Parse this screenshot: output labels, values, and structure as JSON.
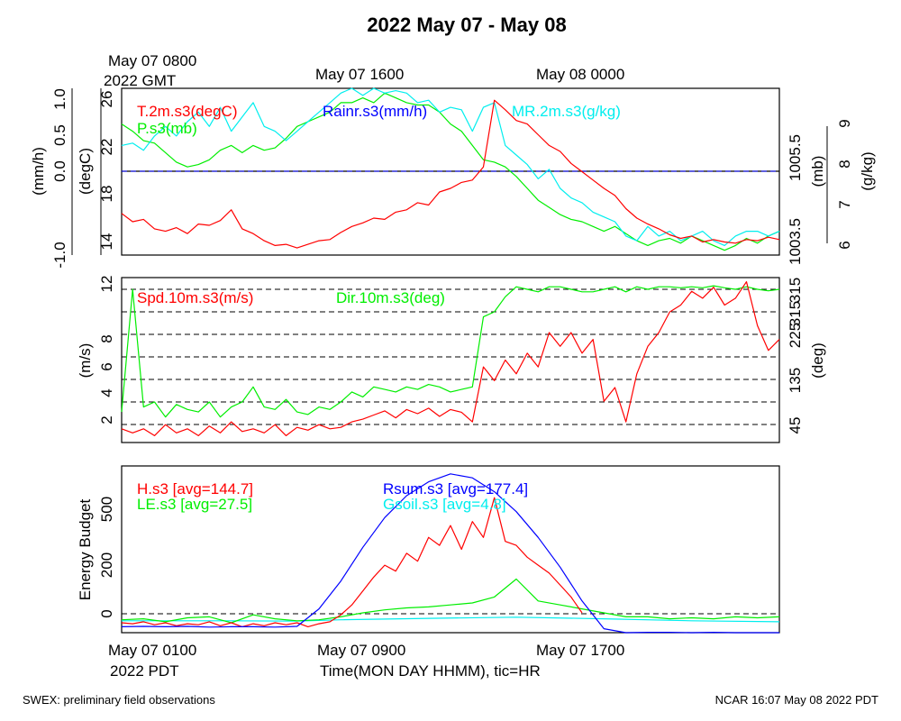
{
  "title": "2022 May 07 - May 08",
  "footer": {
    "left": "SWEX: preliminary field observations",
    "right": "NCAR 16:07 May 08 2022 PDT"
  },
  "colors": {
    "red": "#ff0000",
    "green": "#00ee00",
    "blue": "#0000ff",
    "cyan": "#00eeee",
    "black": "#000000"
  },
  "chart_data": [
    {
      "type": "line",
      "panel": "top",
      "top_time_labels": [
        {
          "label_line1": "May 07 0800",
          "label_line2": "2022 GMT"
        },
        {
          "label_line1": "May 07 1600",
          "label_line2": ""
        },
        {
          "label_line1": "May 08 0000",
          "label_line2": ""
        }
      ],
      "axes": {
        "rain": {
          "label": "(mm/h)",
          "ticks": [
            "1.0",
            "0.5",
            "0.0",
            "-1.0"
          ],
          "ylim": [
            -1.0,
            1.0
          ]
        },
        "temp": {
          "label": "(degC)",
          "ticks": [
            "26",
            "22",
            "18",
            "14"
          ],
          "ylim": [
            13,
            27
          ]
        },
        "pres": {
          "label": "(mb)",
          "ticks": [
            "1005.5",
            "1003.5"
          ]
        },
        "mr": {
          "label": "(g/kg)",
          "ticks": [
            "9",
            "8",
            "7",
            "6"
          ],
          "ylim": [
            5.8,
            9.3
          ]
        }
      },
      "series": [
        {
          "name": "T.2m.s3(degC)",
          "color": "#ff0000",
          "axis": "temp",
          "x": [
            0,
            0.5,
            1,
            1.5,
            2,
            2.5,
            3,
            3.5,
            4,
            4.5,
            5,
            5.5,
            6,
            6.5,
            7,
            7.5,
            8,
            8.5,
            9,
            9.5,
            10,
            10.5,
            11,
            11.5,
            12,
            12.5,
            13,
            13.5,
            14,
            14.5,
            15,
            15.5,
            16,
            16.5,
            17,
            17.5,
            18,
            18.5,
            19,
            19.5,
            20,
            20.5,
            21,
            21.5,
            22,
            22.5,
            23,
            23.5,
            24,
            24.5,
            25,
            25.5,
            26,
            26.5,
            27,
            27.5,
            28,
            28.5,
            29,
            29.5,
            30
          ],
          "values": [
            16.5,
            15.8,
            16.0,
            15.2,
            15.0,
            15.3,
            14.8,
            15.6,
            15.5,
            15.9,
            16.8,
            15.2,
            14.8,
            14.2,
            13.8,
            13.9,
            13.6,
            13.9,
            14.2,
            14.3,
            14.9,
            15.4,
            15.7,
            16.1,
            16.0,
            16.6,
            16.8,
            17.4,
            17.2,
            18.3,
            18.6,
            19.1,
            19.3,
            20.4,
            26.0,
            25.2,
            24.3,
            24.0,
            23.1,
            22.2,
            21.7,
            20.7,
            20.0,
            19.3,
            18.6,
            18.0,
            16.9,
            16.1,
            15.6,
            15.2,
            14.7,
            14.4,
            14.6,
            14.1,
            14.3,
            14.1,
            14.0,
            14.3,
            14.2,
            14.5,
            14.3
          ]
        },
        {
          "name": "Rainr.s3(mm/h)",
          "color": "#0000ff",
          "axis": "rain",
          "x": [
            0,
            30
          ],
          "values": [
            0,
            0
          ]
        },
        {
          "name": "MR.2m.s3(g/kg)",
          "color": "#00eeee",
          "axis": "mr",
          "x": [
            0,
            0.5,
            1,
            1.5,
            2,
            2.5,
            3,
            3.5,
            4,
            4.5,
            5,
            5.5,
            6,
            6.5,
            7,
            7.5,
            8,
            8.5,
            9,
            9.5,
            10,
            10.5,
            11,
            11.5,
            12,
            12.5,
            13,
            13.5,
            14,
            14.5,
            15,
            15.5,
            16,
            16.5,
            17,
            17.5,
            18,
            18.5,
            19,
            19.5,
            20,
            20.5,
            21,
            21.5,
            22,
            22.5,
            23,
            23.5,
            24,
            24.5,
            25,
            25.5,
            26,
            26.5,
            27,
            27.5,
            28,
            28.5,
            29,
            29.5,
            30
          ],
          "values": [
            8.1,
            8.15,
            8.0,
            8.3,
            8.5,
            8.3,
            8.6,
            8.8,
            8.5,
            8.9,
            8.4,
            8.7,
            9.0,
            8.5,
            8.4,
            8.2,
            8.4,
            8.6,
            8.8,
            9.0,
            9.2,
            9.3,
            9.15,
            9.3,
            9.2,
            9.25,
            9.2,
            9.0,
            9.05,
            8.8,
            8.9,
            8.85,
            8.4,
            8.9,
            9.0,
            8.1,
            7.9,
            7.7,
            7.4,
            7.6,
            7.2,
            7.0,
            6.9,
            6.7,
            6.6,
            6.5,
            6.2,
            6.1,
            6.4,
            6.2,
            6.3,
            6.1,
            6.2,
            6.3,
            6.1,
            6.0,
            6.2,
            6.3,
            6.3,
            6.2,
            6.3
          ]
        },
        {
          "name": "P.s3(mb)",
          "color": "#00ee00",
          "axis": "mr",
          "x": [
            0,
            0.5,
            1,
            1.5,
            2,
            2.5,
            3,
            3.5,
            4,
            4.5,
            5,
            5.5,
            6,
            6.5,
            7,
            7.5,
            8,
            8.5,
            9,
            9.5,
            10,
            10.5,
            11,
            11.5,
            12,
            12.5,
            13,
            13.5,
            14,
            14.5,
            15,
            15.5,
            16,
            16.5,
            17,
            17.5,
            18,
            18.5,
            19,
            19.5,
            20,
            20.5,
            21,
            21.5,
            22,
            22.5,
            23,
            23.5,
            24,
            24.5,
            25,
            25.5,
            26,
            26.5,
            27,
            27.5,
            28,
            28.5,
            29,
            29.5,
            30
          ],
          "values": [
            8.55,
            8.4,
            8.2,
            8.15,
            7.95,
            7.75,
            7.65,
            7.7,
            7.8,
            8.0,
            8.1,
            7.95,
            8.1,
            8.0,
            8.05,
            8.25,
            8.5,
            8.6,
            8.7,
            8.8,
            9.0,
            9.0,
            9.1,
            9.0,
            9.2,
            9.1,
            9.0,
            8.95,
            8.95,
            8.8,
            8.55,
            8.4,
            8.1,
            7.8,
            7.75,
            7.65,
            7.45,
            7.2,
            6.95,
            6.8,
            6.65,
            6.55,
            6.5,
            6.4,
            6.3,
            6.4,
            6.25,
            6.1,
            6.0,
            6.1,
            6.15,
            6.05,
            6.2,
            6.1,
            6.0,
            5.9,
            6.0,
            6.15,
            6.05,
            6.2,
            6.3
          ]
        }
      ]
    },
    {
      "type": "line",
      "panel": "middle",
      "axes": {
        "speed": {
          "label": "(m/s)",
          "ticks": [
            "12",
            "8",
            "6",
            "4",
            "2"
          ],
          "ylim": [
            0.5,
            12.5
          ]
        },
        "dir": {
          "label": "(deg)",
          "ticks": [
            "315",
            "225",
            "135",
            "45"
          ],
          "ylim": [
            45,
            315
          ]
        }
      },
      "series": [
        {
          "name": "Spd.10m.s3(m/s)",
          "color": "#ff0000",
          "axis": "speed",
          "x": [
            0,
            0.5,
            1,
            1.5,
            2,
            2.5,
            3,
            3.5,
            4,
            4.5,
            5,
            5.5,
            6,
            6.5,
            7,
            7.5,
            8,
            8.5,
            9,
            9.5,
            10,
            10.5,
            11,
            11.5,
            12,
            12.5,
            13,
            13.5,
            14,
            14.5,
            15,
            15.5,
            16,
            16.5,
            17,
            17.5,
            18,
            18.5,
            19,
            19.5,
            20,
            20.5,
            21,
            21.5,
            22,
            22.5,
            23,
            23.5,
            24,
            24.5,
            25,
            25.5,
            26,
            26.5,
            27,
            27.5,
            28,
            28.5,
            29,
            29.5,
            30
          ],
          "values": [
            1.5,
            1.2,
            1.5,
            1.0,
            1.8,
            1.2,
            1.5,
            1.0,
            1.7,
            1.2,
            2.0,
            1.3,
            1.5,
            1.2,
            1.8,
            1.0,
            1.6,
            1.4,
            1.8,
            1.5,
            1.6,
            2.0,
            2.2,
            2.5,
            2.8,
            2.3,
            2.9,
            2.6,
            3.0,
            2.4,
            2.9,
            2.7,
            2.0,
            6.0,
            5.0,
            6.5,
            5.5,
            7.0,
            6.0,
            8.5,
            7.5,
            8.5,
            7.0,
            8.0,
            3.5,
            4.5,
            2.0,
            5.5,
            7.5,
            8.5,
            10.0,
            10.5,
            11.5,
            11.0,
            11.8,
            10.5,
            11.0,
            12.2,
            9.0,
            7.2,
            8.0
          ]
        },
        {
          "name": "Dir.10m.s3(deg)",
          "color": "#00ee00",
          "axis": "dir",
          "x": [
            0,
            0.5,
            1,
            1.5,
            2,
            2.5,
            3,
            3.5,
            4,
            4.5,
            5,
            5.5,
            6,
            6.5,
            7,
            7.5,
            8,
            8.5,
            9,
            9.5,
            10,
            10.5,
            11,
            11.5,
            12,
            12.5,
            13,
            13.5,
            14,
            14.5,
            15,
            15.5,
            16,
            16.5,
            17,
            17.5,
            18,
            18.5,
            19,
            19.5,
            20,
            20.5,
            21,
            21.5,
            22,
            22.5,
            23,
            23.5,
            24,
            24.5,
            25,
            25.5,
            26,
            26.5,
            27,
            27.5,
            28,
            28.5,
            29,
            29.5,
            30
          ],
          "values": [
            70,
            315,
            80,
            90,
            60,
            85,
            75,
            70,
            90,
            60,
            80,
            90,
            120,
            80,
            75,
            95,
            70,
            65,
            80,
            75,
            90,
            110,
            100,
            120,
            115,
            110,
            120,
            115,
            125,
            120,
            110,
            115,
            120,
            260,
            270,
            300,
            320,
            315,
            310,
            320,
            320,
            315,
            310,
            310,
            315,
            320,
            310,
            320,
            315,
            320,
            320,
            318,
            320,
            318,
            322,
            318,
            315,
            320,
            315,
            312,
            315
          ]
        }
      ]
    },
    {
      "type": "line",
      "panel": "bottom",
      "axes": {
        "energy": {
          "label": "Energy Budget",
          "ticks": [
            "500",
            "200",
            "0"
          ],
          "ylim": [
            -60,
            780
          ]
        }
      },
      "x_labels": [
        {
          "label_line1": "May 07 0100",
          "label_line2": "2022 PDT"
        },
        {
          "label_line1": "May 07 0900",
          "label_line2": ""
        },
        {
          "label_line1": "May 07 1700",
          "label_line2": ""
        }
      ],
      "xlabel": "Time(MON DAY HHMM), tic=HR",
      "series": [
        {
          "name": "H.s3 [avg=144.7]",
          "color": "#ff0000",
          "x": [
            0,
            0.5,
            1,
            1.5,
            2,
            2.5,
            3,
            3.5,
            4,
            4.5,
            5,
            5.5,
            6,
            6.5,
            7,
            7.5,
            8,
            8.5,
            9,
            9.5,
            10,
            10.5,
            11,
            11.5,
            12,
            12.5,
            13,
            13.5,
            14,
            14.5,
            15,
            15.5,
            16,
            16.5,
            17,
            17.5,
            18,
            18.5,
            19,
            19.5,
            20,
            20.5,
            21
          ],
          "values": [
            -10,
            -15,
            -5,
            -20,
            -10,
            -25,
            -15,
            -20,
            -5,
            -25,
            -10,
            -30,
            -15,
            -25,
            -10,
            -20,
            -10,
            -30,
            -15,
            -5,
            30,
            80,
            150,
            220,
            280,
            250,
            340,
            300,
            420,
            380,
            480,
            360,
            500,
            420,
            620,
            400,
            380,
            320,
            280,
            240,
            180,
            120,
            40
          ]
        },
        {
          "name": "Rsum.s3 [avg=177.4]",
          "color": "#0000ff",
          "x": [
            0,
            1,
            2,
            3,
            4,
            5,
            6,
            7,
            8,
            9,
            10,
            11,
            12,
            13,
            14,
            15,
            16,
            17,
            18,
            19,
            20,
            21,
            22,
            23,
            24,
            25,
            26,
            27,
            28,
            29,
            30
          ],
          "values": [
            -30,
            -28,
            -30,
            -28,
            -32,
            -30,
            -30,
            -32,
            -28,
            60,
            200,
            370,
            520,
            630,
            700,
            740,
            720,
            650,
            550,
            420,
            270,
            100,
            -40,
            -60,
            -58,
            -58,
            -60,
            -58,
            -60,
            -60,
            -60
          ]
        },
        {
          "name": "LE.s3 [avg=27.5]",
          "color": "#00ee00",
          "x": [
            0,
            1,
            2,
            3,
            4,
            5,
            6,
            7,
            8,
            9,
            10,
            11,
            12,
            13,
            14,
            15,
            16,
            17,
            18,
            19,
            20,
            21,
            22,
            23,
            24,
            25,
            26,
            27,
            28,
            29,
            30
          ],
          "values": [
            5,
            10,
            -5,
            15,
            20,
            -10,
            30,
            10,
            0,
            5,
            20,
            40,
            55,
            65,
            70,
            80,
            90,
            120,
            210,
            100,
            80,
            60,
            40,
            20,
            20,
            10,
            15,
            10,
            20,
            15,
            20
          ]
        },
        {
          "name": "Gsoil.s3 [avg=4.8]",
          "color": "#00eeee",
          "x": [
            0,
            5,
            8,
            10,
            14,
            18,
            22,
            26,
            30
          ],
          "values": [
            0,
            0,
            -2,
            5,
            12,
            18,
            10,
            0,
            -5
          ]
        }
      ]
    }
  ]
}
